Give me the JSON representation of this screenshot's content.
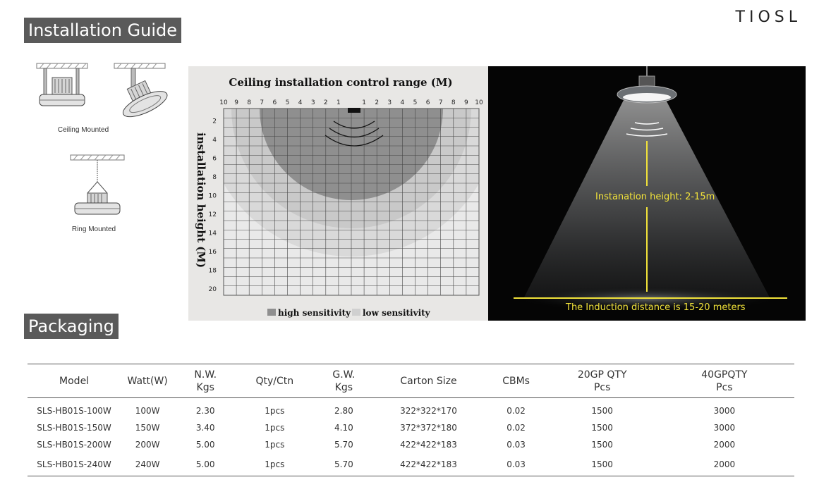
{
  "brand": "TIOSL",
  "installation": {
    "title": "Installation Guide",
    "ceiling_caption": "Ceiling Mounted",
    "ring_caption": "Ring Mounted"
  },
  "range_chart": {
    "title": "Ceiling installation control range (M)",
    "ylabel": "installation height (M)",
    "top_ticks_left": [
      "10",
      "9",
      "8",
      "7",
      "6",
      "5",
      "4",
      "3",
      "2",
      "1"
    ],
    "top_ticks_right": [
      "1",
      "2",
      "3",
      "4",
      "5",
      "6",
      "7",
      "8",
      "9",
      "10"
    ],
    "side_ticks": [
      "2",
      "4",
      "6",
      "8",
      "10",
      "12",
      "14",
      "16",
      "18",
      "20"
    ],
    "legend_high": "high sensitivity",
    "legend_low": "low sensitivity",
    "colors": {
      "high": "#8f8f8f",
      "low": "#cdcdcd",
      "outer": "#dedede",
      "grid": "#444444"
    }
  },
  "scene": {
    "height_label": "Instanation height: 2-15m",
    "distance_label": "The Induction distance is 15-20 meters",
    "accent_color": "#f2e33a"
  },
  "packaging": {
    "title": "Packaging",
    "headers": [
      [
        "Model"
      ],
      [
        "Watt(W)"
      ],
      [
        "N.W.",
        "Kgs"
      ],
      [
        "Qty/Ctn"
      ],
      [
        "G.W.",
        "Kgs"
      ],
      [
        "Carton Size"
      ],
      [
        "CBMs"
      ],
      [
        "20GP QTY",
        "Pcs"
      ],
      [
        "40GPQTY",
        "Pcs"
      ]
    ],
    "rows": [
      [
        "SLS-HB01S-100W",
        "100W",
        "2.30",
        "1pcs",
        "2.80",
        "322*322*170",
        "0.02",
        "1500",
        "3000"
      ],
      [
        "SLS-HB01S-150W",
        "150W",
        "3.40",
        "1pcs",
        "4.10",
        "372*372*180",
        "0.02",
        "1500",
        "3000"
      ],
      [
        "SLS-HB01S-200W",
        "200W",
        "5.00",
        "1pcs",
        "5.70",
        "422*422*183",
        "0.03",
        "1500",
        "2000"
      ],
      [
        "SLS-HB01S-240W",
        "240W",
        "5.00",
        "1pcs",
        "5.70",
        "422*422*183",
        "0.03",
        "1500",
        "2000"
      ]
    ]
  }
}
